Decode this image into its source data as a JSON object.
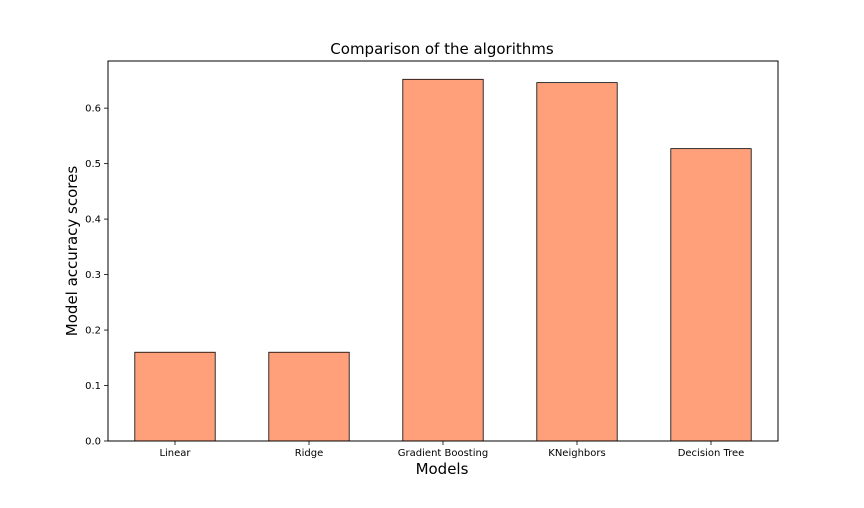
{
  "chart_data": {
    "type": "bar",
    "title": "Comparison of the algorithms",
    "xlabel": "Models",
    "ylabel": "Model accuracy scores",
    "categories": [
      "Linear",
      "Ridge",
      "Gradient Boosting",
      "KNeighbors",
      "Decision Tree"
    ],
    "values": [
      0.16,
      0.16,
      0.652,
      0.646,
      0.527
    ],
    "ylim": [
      0,
      0.685
    ],
    "yticks": [
      0.0,
      0.1,
      0.2,
      0.3,
      0.4,
      0.5,
      0.6
    ],
    "ytick_labels": [
      "0.0",
      "0.1",
      "0.2",
      "0.3",
      "0.4",
      "0.5",
      "0.6"
    ],
    "grid": false,
    "bar_color": "#ffa07a",
    "bar_edge_color": "#000000"
  }
}
